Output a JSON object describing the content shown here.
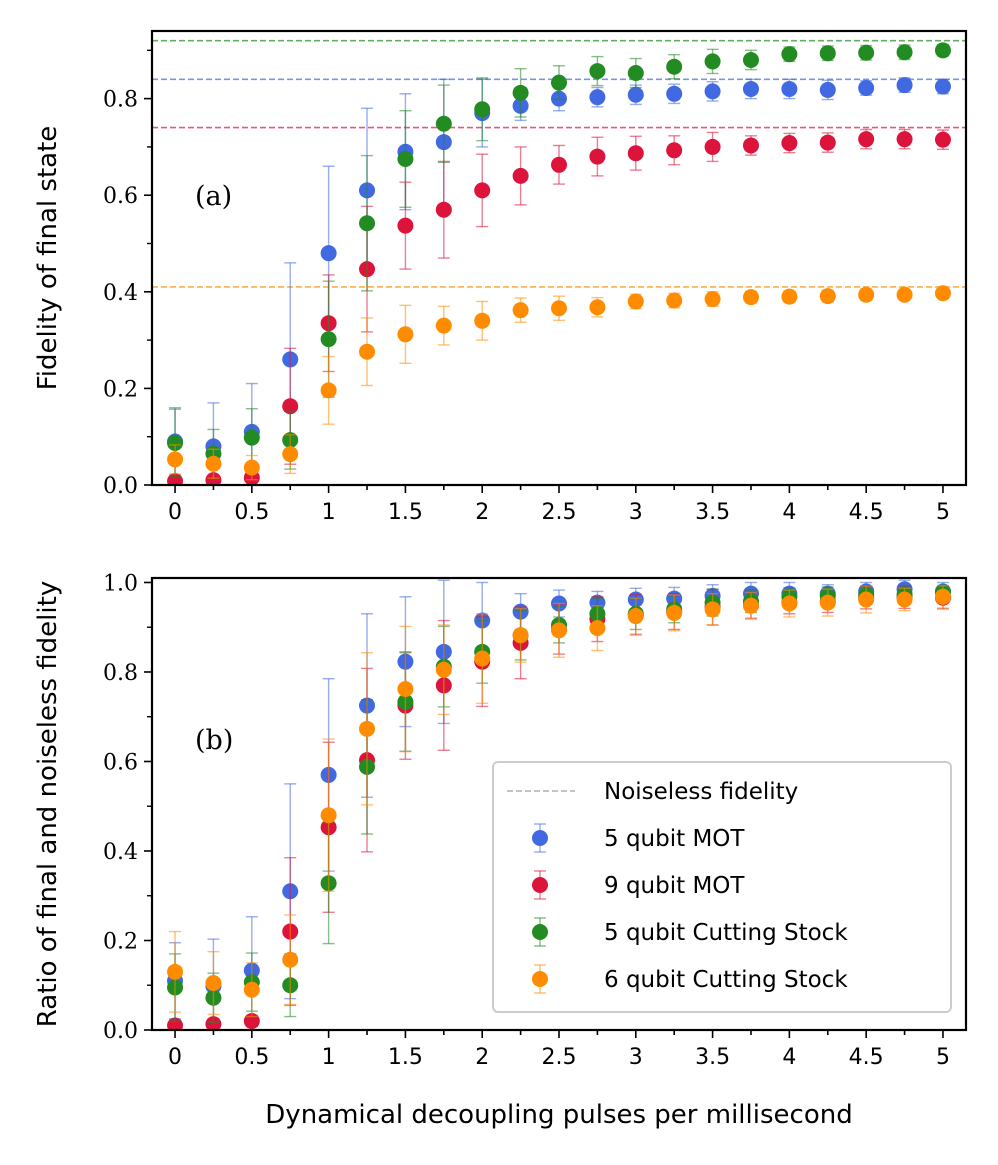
{
  "chart_data": {
    "type": "scatter",
    "xlabel": "Dynamical decoupling pulses per millisecond",
    "x": [
      0,
      0.25,
      0.5,
      0.75,
      1,
      1.25,
      1.5,
      1.75,
      2,
      2.25,
      2.5,
      2.75,
      3,
      3.25,
      3.5,
      3.75,
      4,
      4.25,
      4.5,
      4.75,
      5
    ],
    "xticks": [
      "0",
      "0.5",
      "1",
      "1.5",
      "2",
      "2.5",
      "3",
      "3.5",
      "4",
      "4.5",
      "5"
    ],
    "xtick_values": [
      0,
      0.5,
      1,
      1.5,
      2,
      2.5,
      3,
      3.5,
      4,
      4.5,
      5
    ],
    "xlim": [
      -0.15,
      5.15
    ],
    "legend": {
      "position": "lower-right",
      "entries": [
        {
          "label": "Noiseless fidelity",
          "kind": "dashed-line",
          "color": "#b0b0b0"
        },
        {
          "label": "5 qubit MOT",
          "kind": "marker",
          "color": "#4169e1"
        },
        {
          "label": "9 qubit MOT",
          "kind": "marker",
          "color": "#dc143c"
        },
        {
          "label": "5 qubit Cutting Stock",
          "kind": "marker",
          "color": "#228b22"
        },
        {
          "label": "6 qubit Cutting Stock",
          "kind": "marker",
          "color": "#ff8c00"
        }
      ]
    },
    "panels": [
      {
        "id": "a",
        "panel_label": "(a)",
        "ylabel": "Fidelity of final state",
        "ylim": [
          0,
          0.94
        ],
        "yticks": [
          "0.0",
          "0.2",
          "0.4",
          "0.6",
          "0.8"
        ],
        "ytick_values": [
          0,
          0.2,
          0.4,
          0.6,
          0.8
        ],
        "noiseless_lines": [
          {
            "series": "5 qubit MOT",
            "value": 0.84,
            "color": "#4169e1"
          },
          {
            "series": "9 qubit MOT",
            "value": 0.74,
            "color": "#dc143c"
          },
          {
            "series": "5 qubit Cutting Stock",
            "value": 0.92,
            "color": "#228b22"
          },
          {
            "series": "6 qubit Cutting Stock",
            "value": 0.41,
            "color": "#ff8c00"
          }
        ],
        "series": [
          {
            "name": "5 qubit MOT",
            "color": "#4169e1",
            "values": [
              0.09,
              0.08,
              0.11,
              0.26,
              0.48,
              0.61,
              0.69,
              0.71,
              0.77,
              0.785,
              0.8,
              0.803,
              0.808,
              0.81,
              0.815,
              0.82,
              0.82,
              0.818,
              0.822,
              0.828,
              0.825
            ],
            "errors": [
              0.07,
              0.09,
              0.1,
              0.2,
              0.18,
              0.17,
              0.12,
              0.13,
              0.07,
              0.03,
              0.025,
              0.02,
              0.02,
              0.02,
              0.02,
              0.02,
              0.02,
              0.02,
              0.015,
              0.015,
              0.015
            ]
          },
          {
            "name": "9 qubit MOT",
            "color": "#dc143c",
            "values": [
              0.008,
              0.01,
              0.015,
              0.163,
              0.335,
              0.447,
              0.537,
              0.57,
              0.61,
              0.64,
              0.663,
              0.68,
              0.687,
              0.693,
              0.7,
              0.703,
              0.708,
              0.709,
              0.716,
              0.716,
              0.715
            ],
            "errors": [
              0.01,
              0.01,
              0.01,
              0.12,
              0.1,
              0.13,
              0.09,
              0.1,
              0.075,
              0.06,
              0.04,
              0.04,
              0.035,
              0.03,
              0.03,
              0.02,
              0.02,
              0.02,
              0.02,
              0.02,
              0.02
            ]
          },
          {
            "name": "5 qubit Cutting Stock",
            "color": "#228b22",
            "values": [
              0.087,
              0.065,
              0.098,
              0.093,
              0.302,
              0.542,
              0.675,
              0.748,
              0.778,
              0.812,
              0.833,
              0.857,
              0.853,
              0.866,
              0.877,
              0.88,
              0.892,
              0.894,
              0.895,
              0.896,
              0.9
            ],
            "errors": [
              0.07,
              0.05,
              0.06,
              0.06,
              0.12,
              0.14,
              0.1,
              0.08,
              0.065,
              0.05,
              0.035,
              0.03,
              0.03,
              0.025,
              0.025,
              0.02,
              0.015,
              0.015,
              0.015,
              0.015,
              0.012
            ]
          },
          {
            "name": "6 qubit Cutting Stock",
            "color": "#ff8c00",
            "values": [
              0.053,
              0.044,
              0.036,
              0.064,
              0.196,
              0.276,
              0.312,
              0.33,
              0.34,
              0.362,
              0.366,
              0.368,
              0.38,
              0.382,
              0.385,
              0.389,
              0.39,
              0.391,
              0.394,
              0.394,
              0.397
            ],
            "errors": [
              0.03,
              0.03,
              0.025,
              0.04,
              0.07,
              0.07,
              0.06,
              0.04,
              0.04,
              0.025,
              0.025,
              0.02,
              0.015,
              0.015,
              0.015,
              0.012,
              0.012,
              0.012,
              0.012,
              0.01,
              0.01
            ]
          }
        ]
      },
      {
        "id": "b",
        "panel_label": "(b)",
        "ylabel": "Ratio of final and noiseless fidelity",
        "ylim": [
          0,
          1.01
        ],
        "yticks": [
          "0.0",
          "0.2",
          "0.4",
          "0.6",
          "0.8",
          "1.0"
        ],
        "ytick_values": [
          0,
          0.2,
          0.4,
          0.6,
          0.8,
          1.0
        ],
        "noiseless_lines": [],
        "series": [
          {
            "name": "5 qubit MOT",
            "color": "#4169e1",
            "values": [
              0.11,
              0.098,
              0.133,
              0.31,
              0.57,
              0.725,
              0.823,
              0.845,
              0.915,
              0.935,
              0.953,
              0.955,
              0.962,
              0.964,
              0.97,
              0.975,
              0.975,
              0.975,
              0.98,
              0.985,
              0.98
            ],
            "errors": [
              0.085,
              0.105,
              0.12,
              0.24,
              0.215,
              0.205,
              0.145,
              0.16,
              0.085,
              0.04,
              0.03,
              0.025,
              0.025,
              0.025,
              0.025,
              0.025,
              0.025,
              0.02,
              0.02,
              0.02,
              0.02
            ]
          },
          {
            "name": "9 qubit MOT",
            "color": "#dc143c",
            "values": [
              0.01,
              0.013,
              0.02,
              0.22,
              0.453,
              0.603,
              0.725,
              0.77,
              0.823,
              0.865,
              0.895,
              0.918,
              0.928,
              0.935,
              0.945,
              0.95,
              0.955,
              0.958,
              0.966,
              0.967,
              0.966
            ],
            "errors": [
              0.012,
              0.012,
              0.012,
              0.165,
              0.19,
              0.205,
              0.12,
              0.145,
              0.1,
              0.08,
              0.055,
              0.05,
              0.045,
              0.04,
              0.04,
              0.03,
              0.025,
              0.025,
              0.025,
              0.025,
              0.025
            ]
          },
          {
            "name": "5 qubit Cutting Stock",
            "color": "#228b22",
            "values": [
              0.095,
              0.072,
              0.107,
              0.1,
              0.328,
              0.588,
              0.733,
              0.812,
              0.845,
              0.882,
              0.905,
              0.93,
              0.93,
              0.94,
              0.955,
              0.958,
              0.968,
              0.97,
              0.972,
              0.973,
              0.978
            ],
            "errors": [
              0.075,
              0.055,
              0.065,
              0.07,
              0.135,
              0.15,
              0.11,
              0.09,
              0.07,
              0.055,
              0.04,
              0.035,
              0.035,
              0.03,
              0.03,
              0.025,
              0.02,
              0.02,
              0.02,
              0.02,
              0.015
            ]
          },
          {
            "name": "6 qubit Cutting Stock",
            "color": "#ff8c00",
            "values": [
              0.13,
              0.105,
              0.09,
              0.157,
              0.48,
              0.673,
              0.762,
              0.805,
              0.83,
              0.882,
              0.893,
              0.898,
              0.925,
              0.932,
              0.94,
              0.948,
              0.953,
              0.955,
              0.962,
              0.962,
              0.968
            ],
            "errors": [
              0.09,
              0.07,
              0.06,
              0.1,
              0.17,
              0.17,
              0.14,
              0.1,
              0.1,
              0.06,
              0.06,
              0.05,
              0.04,
              0.04,
              0.035,
              0.03,
              0.03,
              0.03,
              0.03,
              0.025,
              0.025
            ]
          }
        ]
      }
    ]
  }
}
